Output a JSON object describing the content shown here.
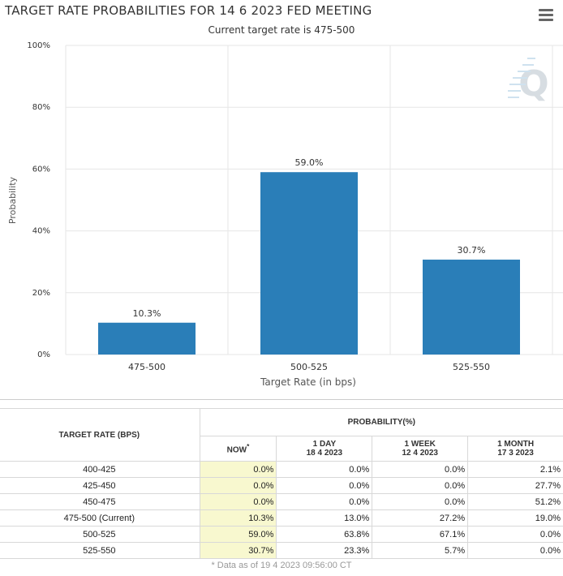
{
  "chart_data": {
    "type": "bar",
    "title": "TARGET RATE PROBABILITIES FOR 14 6 2023 FED MEETING",
    "subtitle": "Current target rate is 475-500",
    "categories": [
      "475-500",
      "500-525",
      "525-550"
    ],
    "values": [
      10.3,
      59.0,
      30.7
    ],
    "data_labels": [
      "10.3%",
      "59.0%",
      "30.7%"
    ],
    "xlabel": "Target Rate (in bps)",
    "ylabel": "Probability",
    "ylim": [
      0,
      100
    ],
    "yticks": [
      0,
      20,
      40,
      60,
      80,
      100
    ],
    "ytick_labels": [
      "0%",
      "20%",
      "40%",
      "60%",
      "80%",
      "100%"
    ],
    "color": "#2a7eb8",
    "grid": true
  },
  "table": {
    "col_target": "TARGET RATE (BPS)",
    "col_prob": "PROBABILITY(%)",
    "col_now": "NOW",
    "now_mark": "*",
    "col_1day": "1 DAY",
    "col_1day_date": "18 4 2023",
    "col_1week": "1 WEEK",
    "col_1week_date": "12 4 2023",
    "col_1month": "1 MONTH",
    "col_1month_date": "17 3 2023",
    "rows": [
      {
        "rate": "400-425",
        "now": "0.0%",
        "day": "0.0%",
        "week": "0.0%",
        "month": "2.1%"
      },
      {
        "rate": "425-450",
        "now": "0.0%",
        "day": "0.0%",
        "week": "0.0%",
        "month": "27.7%"
      },
      {
        "rate": "450-475",
        "now": "0.0%",
        "day": "0.0%",
        "week": "0.0%",
        "month": "51.2%"
      },
      {
        "rate": "475-500 (Current)",
        "now": "10.3%",
        "day": "13.0%",
        "week": "27.2%",
        "month": "19.0%"
      },
      {
        "rate": "500-525",
        "now": "59.0%",
        "day": "63.8%",
        "week": "67.1%",
        "month": "0.0%"
      },
      {
        "rate": "525-550",
        "now": "30.7%",
        "day": "23.3%",
        "week": "5.7%",
        "month": "0.0%"
      }
    ]
  },
  "footer": "* Data as of 19 4 2023 09:56:00 CT",
  "watermark": "Q",
  "menu_icon": "hamburger-menu-icon"
}
